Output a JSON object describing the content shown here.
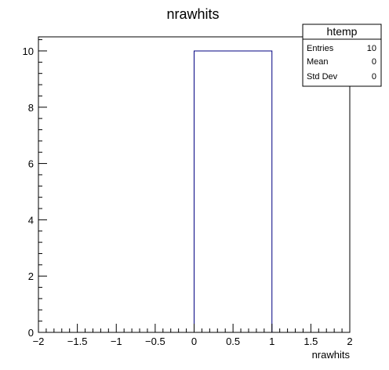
{
  "chart_data": {
    "type": "bar",
    "title": "nrawhits",
    "xlabel": "nrawhits",
    "ylabel": "",
    "xlim": [
      -2,
      2
    ],
    "ylim": [
      0,
      10.5
    ],
    "bins": [
      {
        "low": 0,
        "high": 1,
        "count": 10
      }
    ],
    "x_ticks": [
      -2,
      -1.5,
      -1,
      -0.5,
      0,
      0.5,
      1,
      1.5,
      2
    ],
    "x_tick_labels": [
      "−2",
      "−1.5",
      "−1",
      "−0.5",
      "0",
      "0.5",
      "1",
      "1.5",
      "2"
    ],
    "y_ticks": [
      0,
      2,
      4,
      6,
      8,
      10
    ],
    "y_tick_labels": [
      "0",
      "2",
      "4",
      "6",
      "8",
      "10"
    ],
    "grid": false,
    "legend": "none",
    "line_color": "#000080"
  },
  "stats_box": {
    "title": "htemp",
    "rows": [
      {
        "label": "Entries",
        "value": "10"
      },
      {
        "label": "Mean",
        "value": "0"
      },
      {
        "label": "Std Dev",
        "value": "0"
      }
    ]
  }
}
